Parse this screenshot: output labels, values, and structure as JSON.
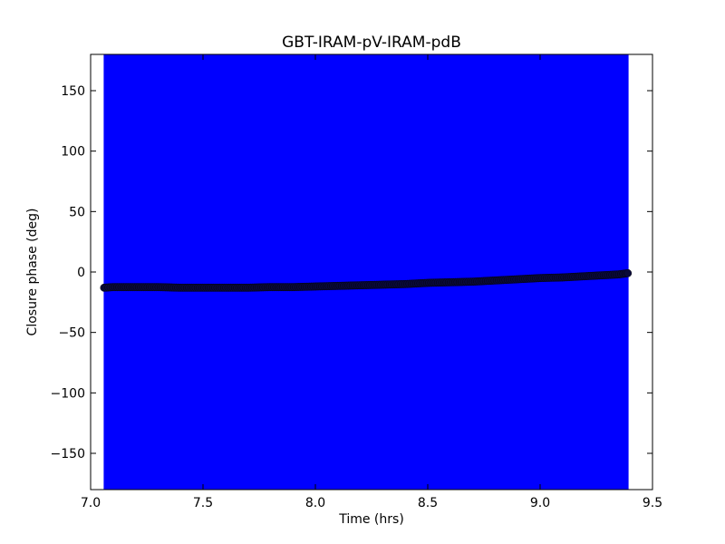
{
  "chart_data": {
    "type": "scatter",
    "title": "GBT-IRAM-pV-IRAM-pdB",
    "xlabel": "Time (hrs)",
    "ylabel": "Closure phase (deg)",
    "xlim": [
      7.0,
      9.5
    ],
    "ylim": [
      -180,
      180
    ],
    "xticks": [
      7.0,
      7.5,
      8.0,
      8.5,
      9.0,
      9.5
    ],
    "xtick_labels": [
      "7.0",
      "7.5",
      "8.0",
      "8.5",
      "9.0",
      "9.5"
    ],
    "yticks": [
      150,
      100,
      50,
      0,
      -50,
      -100,
      -150
    ],
    "ytick_labels": [
      "150",
      "100",
      "50",
      "0",
      "−50",
      "−100",
      "−150"
    ],
    "grid": false,
    "errorbar_color": "#0000ff",
    "marker_color": "#0a0a3a",
    "x_range": [
      7.06,
      9.39
    ],
    "series": [
      {
        "x": [
          7.06,
          7.1,
          7.2,
          7.3,
          7.4,
          7.5,
          7.6,
          7.7,
          7.8,
          7.9,
          8.0,
          8.1,
          8.2,
          8.3,
          8.4,
          8.5,
          8.6,
          8.7,
          8.8,
          8.9,
          9.0,
          9.1,
          9.2,
          9.3,
          9.35,
          9.39
        ],
        "y": [
          -13,
          -12.5,
          -12.5,
          -12.5,
          -13,
          -13,
          -13,
          -13,
          -12.5,
          -12.5,
          -12,
          -11.5,
          -11,
          -10.5,
          -10,
          -9,
          -8.5,
          -8,
          -7,
          -6,
          -5,
          -4.5,
          -3.5,
          -2.5,
          -2,
          -1
        ]
      }
    ]
  }
}
